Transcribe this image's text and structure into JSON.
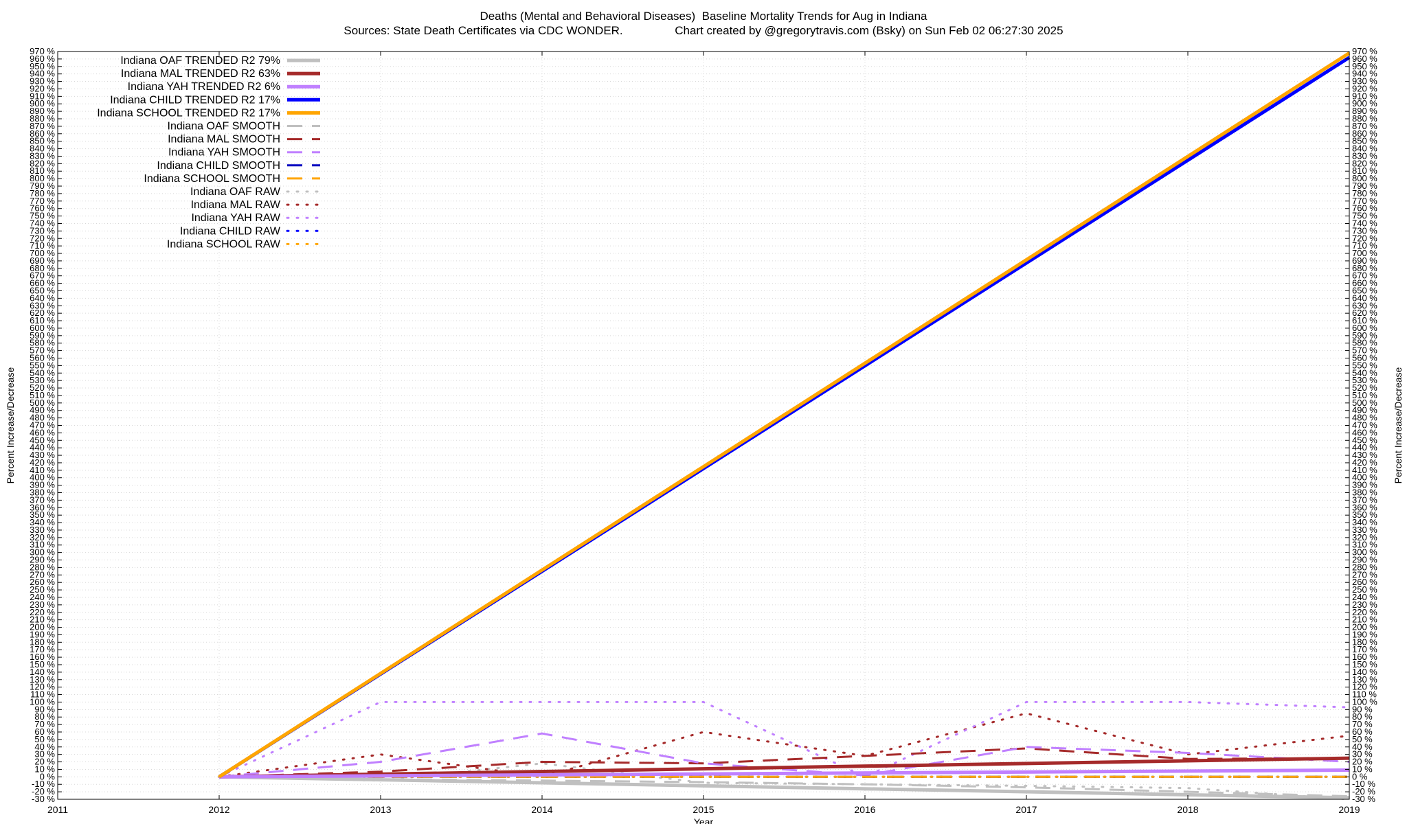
{
  "chart_data": {
    "type": "line",
    "title": "Deaths (Mental and Behavioral Diseases)  Baseline Mortality Trends for Aug in Indiana",
    "subtitle": "Sources: State Death Certificates via CDC WONDER.                Chart created by @gregorytravis.com (Bsky) on Sun Feb 02 06:27:30 2025",
    "xlabel": "Year",
    "ylabel": "Percent Increase/Decrease",
    "y2label": "Percent Increase/Decrease",
    "xlim": [
      2011,
      2019
    ],
    "ylim": [
      -30,
      970
    ],
    "x_ticks": [
      2011,
      2012,
      2013,
      2014,
      2015,
      2016,
      2017,
      2018,
      2019
    ],
    "y_tick_step": 10,
    "y_tick_suffix": " %",
    "grid": true,
    "legend_position": "top-left",
    "series": [
      {
        "name": "Indiana OAF TRENDED R2  79%",
        "style": "solid",
        "color": "#c0c0c0",
        "x": [
          2012,
          2019
        ],
        "y": [
          0,
          -28
        ]
      },
      {
        "name": "Indiana MAL TRENDED R2  63%",
        "style": "solid",
        "color": "#a52a2a",
        "x": [
          2012,
          2019
        ],
        "y": [
          0,
          25
        ]
      },
      {
        "name": "Indiana YAH TRENDED R2   6%",
        "style": "solid",
        "color": "#c080ff",
        "x": [
          2012,
          2019
        ],
        "y": [
          0,
          9
        ]
      },
      {
        "name": "Indiana CHILD TRENDED R2  17%",
        "style": "solid",
        "color": "#0000ff",
        "x": [
          2012,
          2019
        ],
        "y": [
          0,
          962
        ]
      },
      {
        "name": "Indiana SCHOOL TRENDED R2  17%",
        "style": "solid",
        "color": "#ffa500",
        "x": [
          2012,
          2019
        ],
        "y": [
          0,
          968
        ]
      },
      {
        "name": "Indiana OAF SMOOTH",
        "style": "dash",
        "color": "#c0c0c0",
        "x": [
          2012,
          2013,
          2014,
          2015,
          2016,
          2017,
          2018,
          2019
        ],
        "y": [
          0,
          -3,
          -5,
          -7,
          -10,
          -14,
          -20,
          -26
        ]
      },
      {
        "name": "Indiana MAL SMOOTH",
        "style": "dash",
        "color": "#a52a2a",
        "x": [
          2012,
          2013,
          2014,
          2015,
          2016,
          2017,
          2018,
          2019
        ],
        "y": [
          0,
          7,
          20,
          18,
          28,
          38,
          24,
          25
        ]
      },
      {
        "name": "Indiana YAH SMOOTH",
        "style": "dash",
        "color": "#c080ff",
        "x": [
          2012,
          2013,
          2014,
          2015,
          2016,
          2017,
          2018,
          2019
        ],
        "y": [
          0,
          20,
          58,
          18,
          2,
          40,
          32,
          20
        ]
      },
      {
        "name": "Indiana CHILD SMOOTH",
        "style": "dash",
        "color": "#0000c0",
        "x": [
          2012,
          2019
        ],
        "y": [
          0,
          0
        ]
      },
      {
        "name": "Indiana SCHOOL SMOOTH",
        "style": "dash",
        "color": "#ffa500",
        "x": [
          2012,
          2019
        ],
        "y": [
          0,
          0
        ]
      },
      {
        "name": "Indiana OAF RAW",
        "style": "dot",
        "color": "#c0c0c0",
        "x": [
          2012,
          2013,
          2014,
          2015,
          2016,
          2017,
          2018,
          2019
        ],
        "y": [
          0,
          -5,
          18,
          -8,
          -10,
          -12,
          -15,
          -30
        ]
      },
      {
        "name": "Indiana MAL RAW",
        "style": "dot",
        "color": "#a52a2a",
        "x": [
          2012,
          2013,
          2014,
          2015,
          2016,
          2017,
          2018,
          2019
        ],
        "y": [
          0,
          30,
          0,
          60,
          28,
          85,
          30,
          55
        ]
      },
      {
        "name": "Indiana YAH RAW",
        "style": "dot",
        "color": "#c080ff",
        "x": [
          2012,
          2013,
          2014,
          2015,
          2016,
          2017,
          2018,
          2019
        ],
        "y": [
          0,
          100,
          100,
          100,
          0,
          100,
          100,
          93
        ]
      },
      {
        "name": "Indiana CHILD RAW",
        "style": "dot",
        "color": "#0000ff",
        "x": [
          2012,
          2019
        ],
        "y": [
          0,
          0
        ]
      },
      {
        "name": "Indiana SCHOOL RAW",
        "style": "dot",
        "color": "#ffa500",
        "x": [
          2012,
          2019
        ],
        "y": [
          0,
          0
        ]
      }
    ]
  }
}
